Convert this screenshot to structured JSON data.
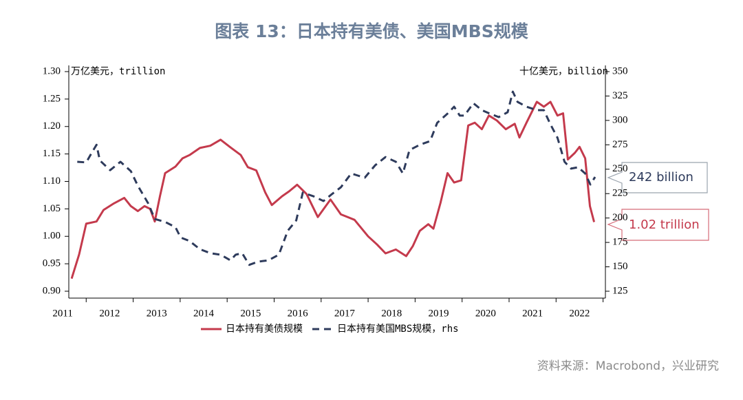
{
  "chart_data": {
    "type": "line",
    "title": "图表 13：日本持有美债、美国MBS规模",
    "y_label": "万亿美元，trillion",
    "y2_label": "十亿美元，billion",
    "source": "资料来源：Macrobond，兴业研究",
    "xlim": [
      2011.63,
      2023.05
    ],
    "xticks": [
      2012,
      2013,
      2014,
      2015,
      2016,
      2017,
      2018,
      2019,
      2020,
      2021,
      2022,
      2023
    ],
    "year_labels": [
      {
        "value": 2011.5,
        "label": "2011"
      },
      {
        "value": 2012.5,
        "label": "2012"
      },
      {
        "value": 2013.5,
        "label": "2013"
      },
      {
        "value": 2014.5,
        "label": "2014"
      },
      {
        "value": 2015.5,
        "label": "2015"
      },
      {
        "value": 2016.5,
        "label": "2016"
      },
      {
        "value": 2017.5,
        "label": "2017"
      },
      {
        "value": 2018.5,
        "label": "2018"
      },
      {
        "value": 2019.5,
        "label": "2019"
      },
      {
        "value": 2020.5,
        "label": "2020"
      },
      {
        "value": 2021.5,
        "label": "2021"
      },
      {
        "value": 2022.5,
        "label": "2022"
      }
    ],
    "ylim": [
      0.9,
      1.3
    ],
    "yticks": [
      {
        "value": 0.9,
        "label": "0.90"
      },
      0.95,
      {
        "value": 1.0,
        "label": "1.00"
      },
      1.05,
      {
        "value": 1.1,
        "label": "1.10"
      },
      1.15,
      {
        "value": 1.2,
        "label": "1.20"
      },
      1.25,
      {
        "value": 1.3,
        "label": "1.30"
      }
    ],
    "y2lim": [
      125,
      350
    ],
    "y2ticks": [
      125,
      150,
      175,
      200,
      225,
      250,
      275,
      300,
      325,
      350
    ],
    "series": [
      {
        "name": "日本持有美债规模",
        "color": "#c43a4c",
        "dash": false,
        "x": [
          2011.69,
          2011.85,
          2012.0,
          2012.22,
          2012.37,
          2012.59,
          2012.81,
          2012.95,
          2013.1,
          2013.24,
          2013.36,
          2013.46,
          2013.57,
          2013.68,
          2013.9,
          2014.05,
          2014.2,
          2014.42,
          2014.64,
          2014.86,
          2015.07,
          2015.29,
          2015.44,
          2015.62,
          2015.81,
          2015.95,
          2016.17,
          2016.32,
          2016.49,
          2016.69,
          2016.93,
          2017.2,
          2017.42,
          2017.71,
          2018.0,
          2018.19,
          2018.37,
          2018.59,
          2018.81,
          2018.95,
          2019.1,
          2019.28,
          2019.39,
          2019.54,
          2019.69,
          2019.83,
          2019.98,
          2020.13,
          2020.27,
          2020.42,
          2020.57,
          2020.74,
          2020.93,
          2021.12,
          2021.22,
          2021.37,
          2021.59,
          2021.74,
          2021.88,
          2022.03,
          2022.15,
          2022.25,
          2022.4,
          2022.5,
          2022.62,
          2022.72,
          2022.81
        ],
        "values": [
          0.923,
          0.967,
          1.023,
          1.027,
          1.048,
          1.06,
          1.07,
          1.055,
          1.046,
          1.055,
          1.05,
          1.027,
          1.073,
          1.115,
          1.127,
          1.142,
          1.148,
          1.161,
          1.165,
          1.176,
          1.162,
          1.148,
          1.126,
          1.12,
          1.08,
          1.057,
          1.073,
          1.082,
          1.094,
          1.077,
          1.035,
          1.067,
          1.04,
          1.03,
          1.0,
          0.985,
          0.969,
          0.976,
          0.964,
          0.982,
          1.01,
          1.022,
          1.014,
          1.061,
          1.115,
          1.098,
          1.102,
          1.202,
          1.207,
          1.195,
          1.22,
          1.211,
          1.195,
          1.205,
          1.18,
          1.207,
          1.245,
          1.236,
          1.245,
          1.22,
          1.224,
          1.14,
          1.152,
          1.163,
          1.142,
          1.055,
          1.026
        ]
      },
      {
        "name": "日本持有美国MBS规模，rhs",
        "color": "#2e3b5c",
        "dash": true,
        "axis": "y2",
        "x": [
          2011.81,
          2012.0,
          2012.12,
          2012.22,
          2012.29,
          2012.51,
          2012.73,
          2012.95,
          2013.1,
          2013.32,
          2013.46,
          2013.68,
          2013.9,
          2014.01,
          2014.2,
          2014.42,
          2014.64,
          2014.86,
          2015.07,
          2015.18,
          2015.32,
          2015.47,
          2015.66,
          2015.88,
          2016.1,
          2016.29,
          2016.47,
          2016.61,
          2016.83,
          2017.05,
          2017.23,
          2017.42,
          2017.64,
          2017.78,
          2017.93,
          2018.15,
          2018.37,
          2018.59,
          2018.74,
          2018.88,
          2019.1,
          2019.32,
          2019.47,
          2019.69,
          2019.83,
          2019.95,
          2020.05,
          2020.24,
          2020.42,
          2020.59,
          2020.78,
          2020.97,
          2021.08,
          2021.18,
          2021.37,
          2021.59,
          2021.74,
          2021.88,
          2022.03,
          2022.18,
          2022.32,
          2022.47,
          2022.62,
          2022.73,
          2022.83
        ],
        "values": [
          257.6,
          257,
          267,
          275,
          259,
          249,
          257.6,
          248,
          233,
          215,
          199,
          196,
          190.6,
          180,
          176.5,
          168,
          164,
          162.4,
          156.7,
          162.4,
          164,
          152,
          155.3,
          156.7,
          162.4,
          187,
          197.6,
          226,
          222.4,
          217.4,
          224.5,
          231.5,
          245.6,
          243.5,
          241.4,
          254,
          262.5,
          257.6,
          245.6,
          269.6,
          275,
          278.8,
          297.5,
          307,
          314,
          304.9,
          304.9,
          317.6,
          310.5,
          307,
          303.4,
          308.4,
          329.5,
          319,
          314,
          310.5,
          310.5,
          296,
          282.3,
          257.6,
          250.6,
          252,
          245.6,
          234.3,
          242
        ]
      }
    ],
    "annotations": [
      "242 billion",
      "1.02 trillion"
    ]
  }
}
